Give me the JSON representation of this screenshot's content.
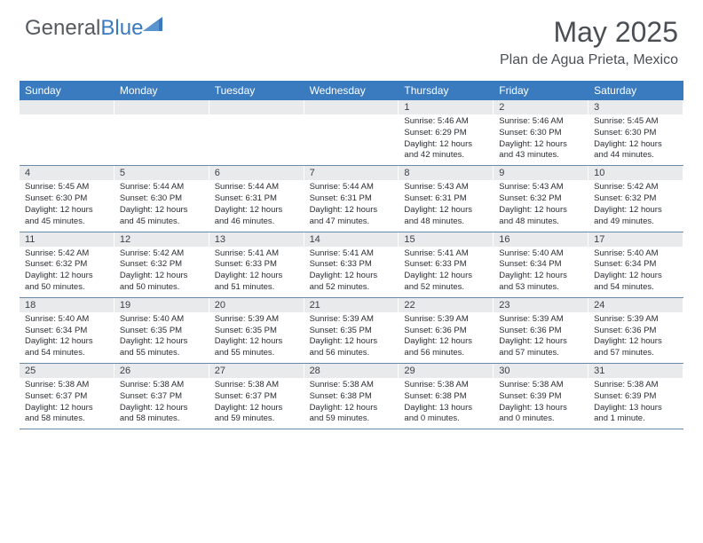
{
  "logo": {
    "text_gray": "General",
    "text_blue": "Blue",
    "icon_color": "#3a7bbf"
  },
  "title": "May 2025",
  "location": "Plan de Agua Prieta, Mexico",
  "colors": {
    "header_bg": "#3a7bbf",
    "header_text": "#ffffff",
    "daynum_bg": "#e9eaec",
    "body_text": "#2a2e33",
    "title_text": "#4a4f55",
    "week_border": "#6a8aaa"
  },
  "day_names": [
    "Sunday",
    "Monday",
    "Tuesday",
    "Wednesday",
    "Thursday",
    "Friday",
    "Saturday"
  ],
  "weeks": [
    [
      null,
      null,
      null,
      null,
      {
        "n": "1",
        "sunrise": "5:46 AM",
        "sunset": "6:29 PM",
        "daylight": "12 hours and 42 minutes."
      },
      {
        "n": "2",
        "sunrise": "5:46 AM",
        "sunset": "6:30 PM",
        "daylight": "12 hours and 43 minutes."
      },
      {
        "n": "3",
        "sunrise": "5:45 AM",
        "sunset": "6:30 PM",
        "daylight": "12 hours and 44 minutes."
      }
    ],
    [
      {
        "n": "4",
        "sunrise": "5:45 AM",
        "sunset": "6:30 PM",
        "daylight": "12 hours and 45 minutes."
      },
      {
        "n": "5",
        "sunrise": "5:44 AM",
        "sunset": "6:30 PM",
        "daylight": "12 hours and 45 minutes."
      },
      {
        "n": "6",
        "sunrise": "5:44 AM",
        "sunset": "6:31 PM",
        "daylight": "12 hours and 46 minutes."
      },
      {
        "n": "7",
        "sunrise": "5:44 AM",
        "sunset": "6:31 PM",
        "daylight": "12 hours and 47 minutes."
      },
      {
        "n": "8",
        "sunrise": "5:43 AM",
        "sunset": "6:31 PM",
        "daylight": "12 hours and 48 minutes."
      },
      {
        "n": "9",
        "sunrise": "5:43 AM",
        "sunset": "6:32 PM",
        "daylight": "12 hours and 48 minutes."
      },
      {
        "n": "10",
        "sunrise": "5:42 AM",
        "sunset": "6:32 PM",
        "daylight": "12 hours and 49 minutes."
      }
    ],
    [
      {
        "n": "11",
        "sunrise": "5:42 AM",
        "sunset": "6:32 PM",
        "daylight": "12 hours and 50 minutes."
      },
      {
        "n": "12",
        "sunrise": "5:42 AM",
        "sunset": "6:32 PM",
        "daylight": "12 hours and 50 minutes."
      },
      {
        "n": "13",
        "sunrise": "5:41 AM",
        "sunset": "6:33 PM",
        "daylight": "12 hours and 51 minutes."
      },
      {
        "n": "14",
        "sunrise": "5:41 AM",
        "sunset": "6:33 PM",
        "daylight": "12 hours and 52 minutes."
      },
      {
        "n": "15",
        "sunrise": "5:41 AM",
        "sunset": "6:33 PM",
        "daylight": "12 hours and 52 minutes."
      },
      {
        "n": "16",
        "sunrise": "5:40 AM",
        "sunset": "6:34 PM",
        "daylight": "12 hours and 53 minutes."
      },
      {
        "n": "17",
        "sunrise": "5:40 AM",
        "sunset": "6:34 PM",
        "daylight": "12 hours and 54 minutes."
      }
    ],
    [
      {
        "n": "18",
        "sunrise": "5:40 AM",
        "sunset": "6:34 PM",
        "daylight": "12 hours and 54 minutes."
      },
      {
        "n": "19",
        "sunrise": "5:40 AM",
        "sunset": "6:35 PM",
        "daylight": "12 hours and 55 minutes."
      },
      {
        "n": "20",
        "sunrise": "5:39 AM",
        "sunset": "6:35 PM",
        "daylight": "12 hours and 55 minutes."
      },
      {
        "n": "21",
        "sunrise": "5:39 AM",
        "sunset": "6:35 PM",
        "daylight": "12 hours and 56 minutes."
      },
      {
        "n": "22",
        "sunrise": "5:39 AM",
        "sunset": "6:36 PM",
        "daylight": "12 hours and 56 minutes."
      },
      {
        "n": "23",
        "sunrise": "5:39 AM",
        "sunset": "6:36 PM",
        "daylight": "12 hours and 57 minutes."
      },
      {
        "n": "24",
        "sunrise": "5:39 AM",
        "sunset": "6:36 PM",
        "daylight": "12 hours and 57 minutes."
      }
    ],
    [
      {
        "n": "25",
        "sunrise": "5:38 AM",
        "sunset": "6:37 PM",
        "daylight": "12 hours and 58 minutes."
      },
      {
        "n": "26",
        "sunrise": "5:38 AM",
        "sunset": "6:37 PM",
        "daylight": "12 hours and 58 minutes."
      },
      {
        "n": "27",
        "sunrise": "5:38 AM",
        "sunset": "6:37 PM",
        "daylight": "12 hours and 59 minutes."
      },
      {
        "n": "28",
        "sunrise": "5:38 AM",
        "sunset": "6:38 PM",
        "daylight": "12 hours and 59 minutes."
      },
      {
        "n": "29",
        "sunrise": "5:38 AM",
        "sunset": "6:38 PM",
        "daylight": "13 hours and 0 minutes."
      },
      {
        "n": "30",
        "sunrise": "5:38 AM",
        "sunset": "6:39 PM",
        "daylight": "13 hours and 0 minutes."
      },
      {
        "n": "31",
        "sunrise": "5:38 AM",
        "sunset": "6:39 PM",
        "daylight": "13 hours and 1 minute."
      }
    ]
  ],
  "labels": {
    "sunrise": "Sunrise:",
    "sunset": "Sunset:",
    "daylight": "Daylight:"
  },
  "fonts": {
    "title_size": 32,
    "location_size": 16,
    "dayname_size": 12,
    "daynum_size": 11,
    "body_size": 9.5
  }
}
